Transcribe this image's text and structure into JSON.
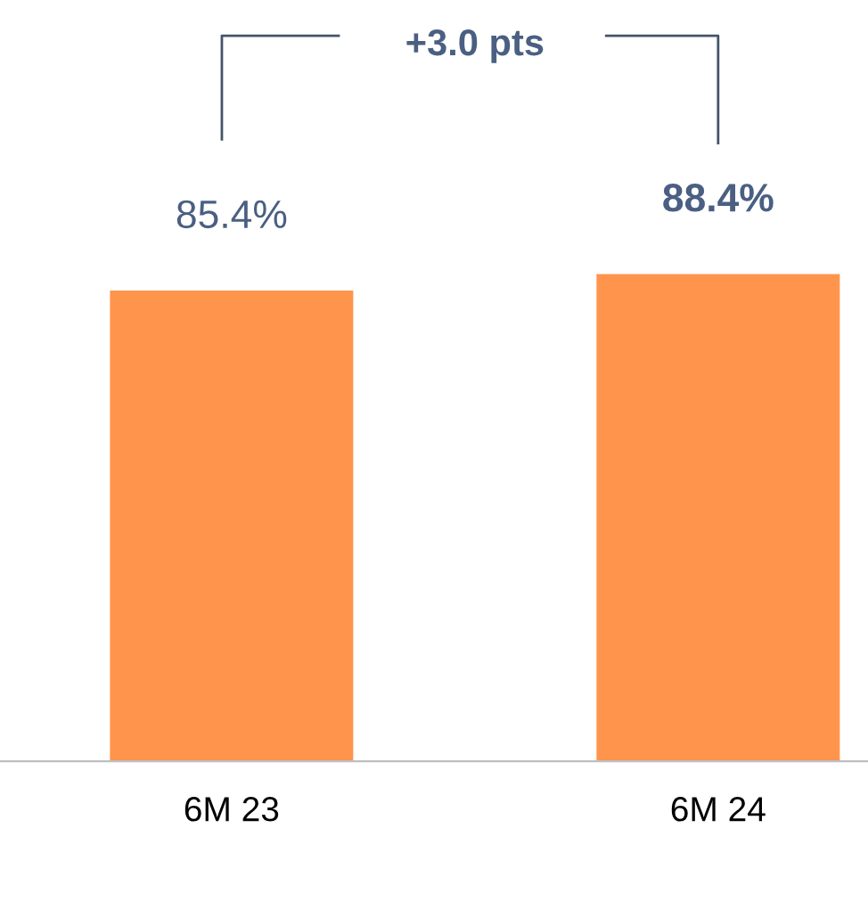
{
  "chart_data": {
    "type": "bar",
    "categories": [
      "6M 23",
      "6M 24"
    ],
    "values": [
      85.4,
      88.4
    ],
    "color": "#ff944d",
    "data_labels": true,
    "value_labels": [
      "85.4%",
      "88.4%"
    ],
    "annotations": [
      "+3.0 pts"
    ]
  }
}
